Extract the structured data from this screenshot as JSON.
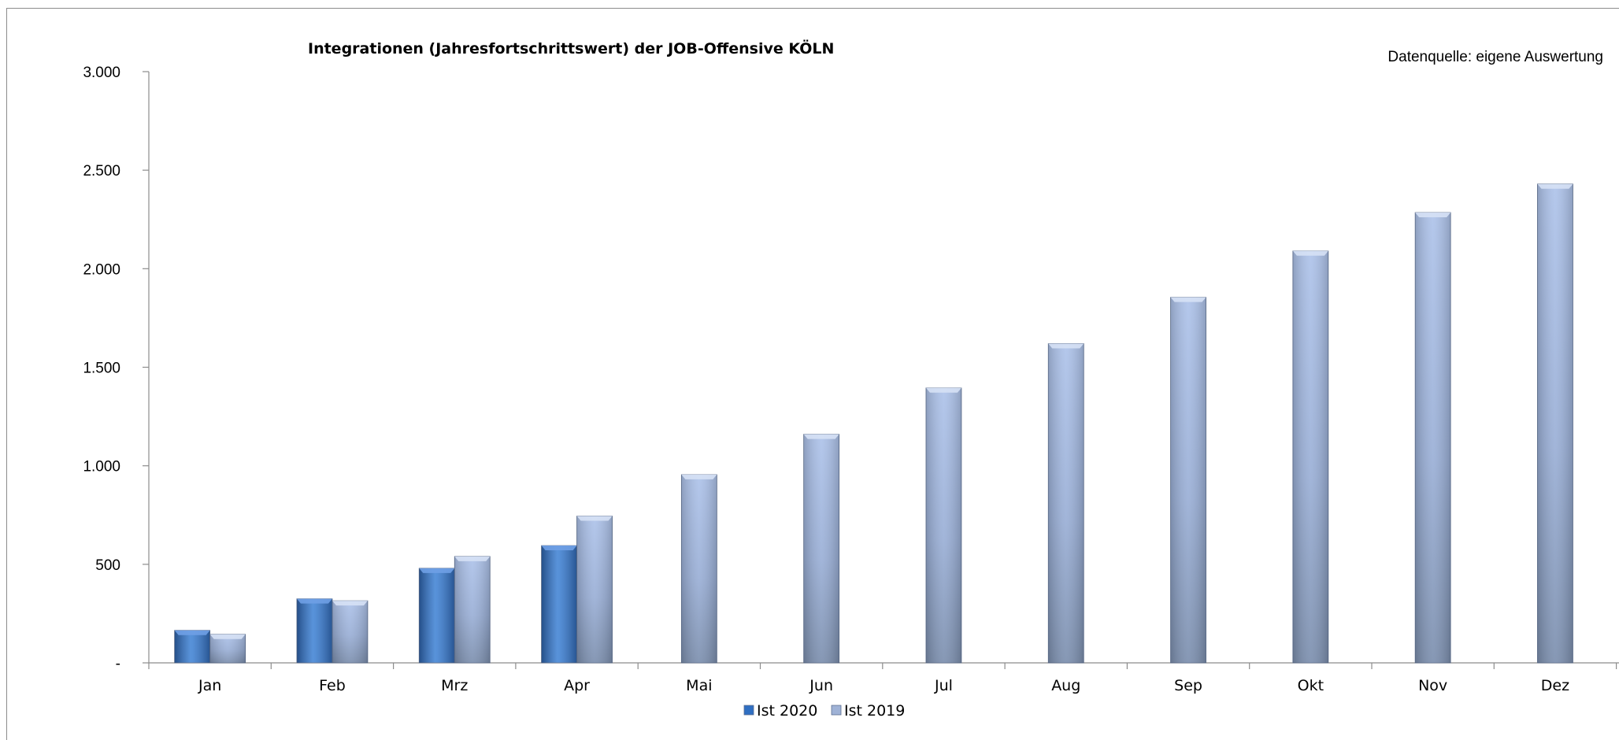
{
  "chart_data": {
    "type": "bar",
    "title": "Integrationen (Jahresfortschrittswert) der JOB-Offensive KÖLN",
    "source_note": "Datenquelle: eigene Auswertung",
    "categories": [
      "Jan",
      "Feb",
      "Mrz",
      "Apr",
      "Mai",
      "Jun",
      "Jul",
      "Aug",
      "Sep",
      "Okt",
      "Nov",
      "Dez"
    ],
    "series": [
      {
        "name": "Ist 2020",
        "color": "#3f7ccd",
        "values": [
          165,
          325,
          480,
          595,
          null,
          null,
          null,
          null,
          null,
          null,
          null,
          null
        ]
      },
      {
        "name": "Ist 2019",
        "color": "#a3b8e0",
        "values": [
          145,
          315,
          540,
          745,
          955,
          1160,
          1395,
          1620,
          1855,
          2090,
          2285,
          2430
        ]
      }
    ],
    "y_ticks": [
      {
        "value": 0,
        "label": "-"
      },
      {
        "value": 500,
        "label": "500"
      },
      {
        "value": 1000,
        "label": "1.000"
      },
      {
        "value": 1500,
        "label": "1.500"
      },
      {
        "value": 2000,
        "label": "2.000"
      },
      {
        "value": 2500,
        "label": "2.500"
      },
      {
        "value": 3000,
        "label": "3.000"
      }
    ],
    "ylim": [
      0,
      3000
    ],
    "grid": false,
    "legend_position": "bottom-center"
  }
}
